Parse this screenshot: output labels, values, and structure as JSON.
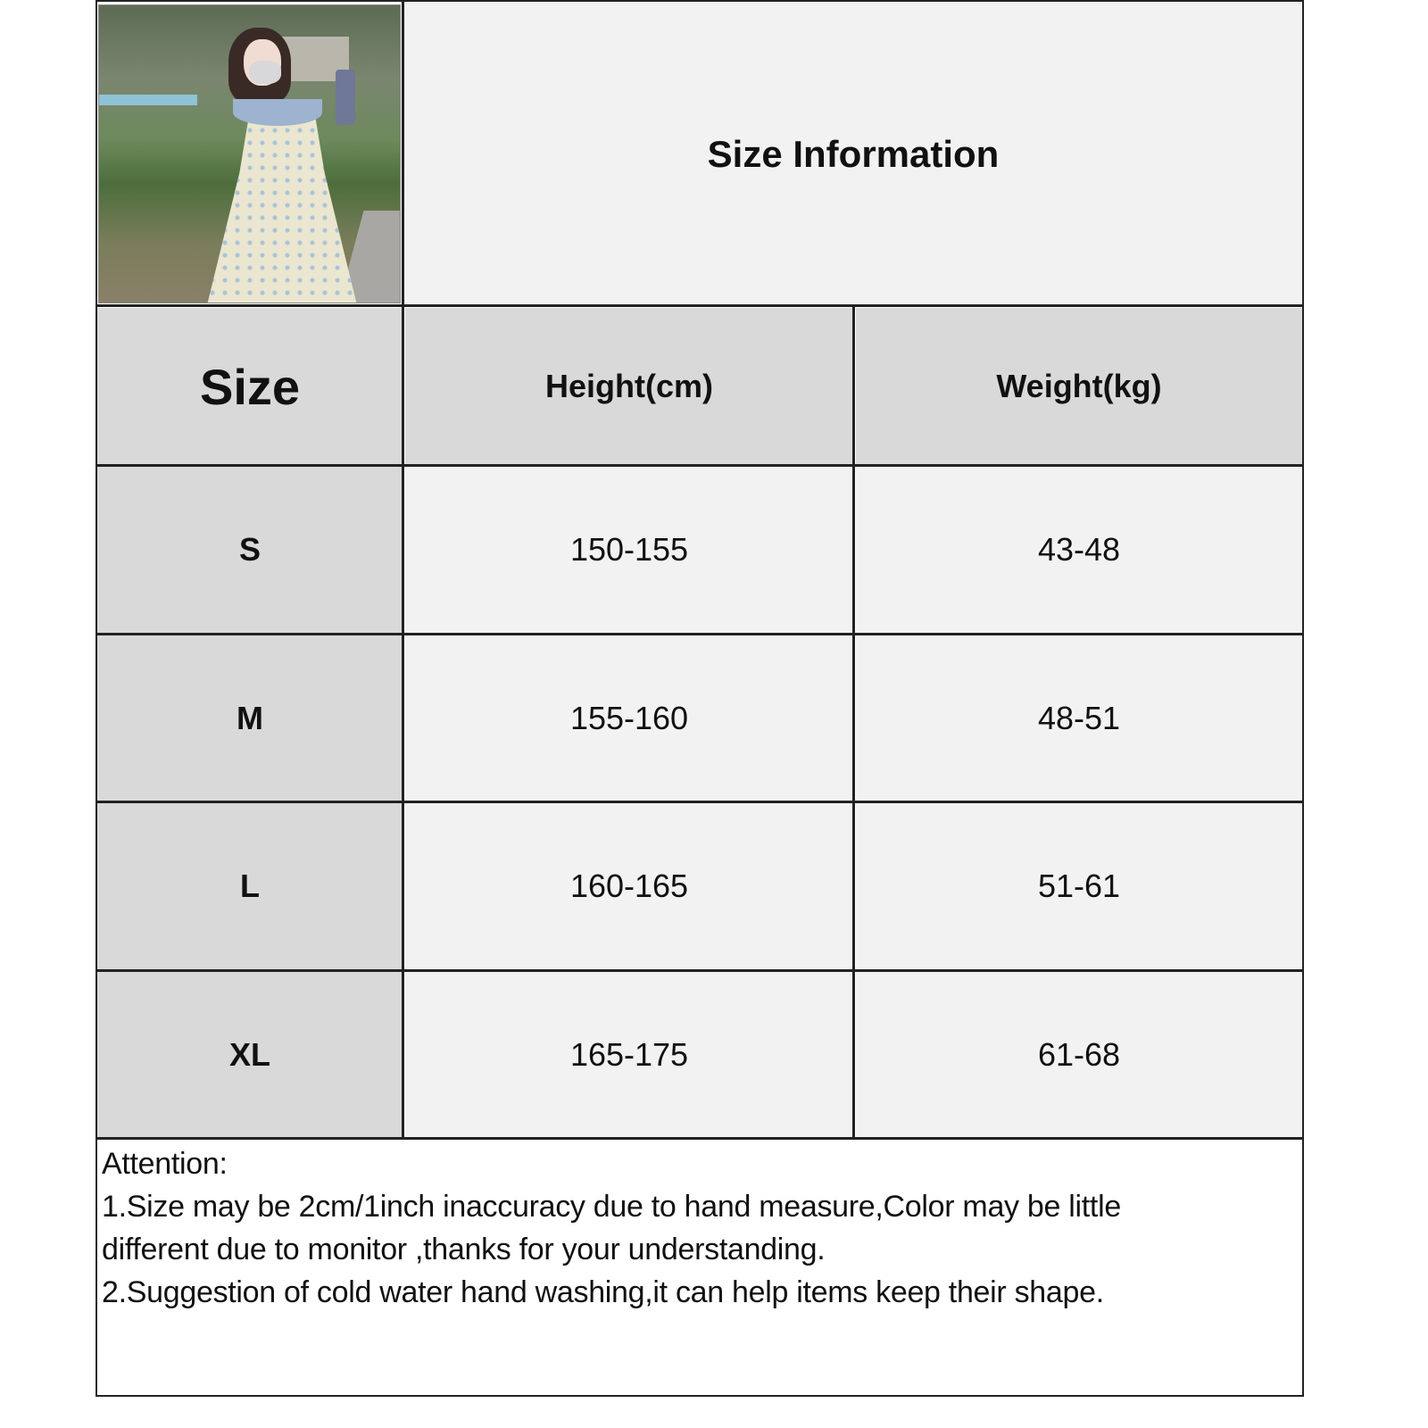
{
  "title": "Size Information",
  "photo": {
    "description_icon": "product-photo"
  },
  "table": {
    "headers": {
      "size": "Size",
      "height": "Height(cm)",
      "weight": "Weight(kg)"
    },
    "rows": [
      {
        "size": "S",
        "height": "150-155",
        "weight": "43-48"
      },
      {
        "size": "M",
        "height": "155-160",
        "weight": "48-51"
      },
      {
        "size": "L",
        "height": "160-165",
        "weight": "51-61"
      },
      {
        "size": "XL",
        "height": "165-175",
        "weight": "61-68"
      }
    ]
  },
  "notes": {
    "heading": "Attention:",
    "line1a": "1.Size may be 2cm/1inch inaccuracy due to hand measure,Color may be little",
    "line1b": "different due to monitor ,thanks for your understanding.",
    "line2": "2.Suggestion of cold water hand washing,it can help items keep their shape."
  },
  "colors": {
    "header_bg": "#d9d9d9",
    "cell_bg": "#f2f2f2",
    "border": "#222222"
  }
}
